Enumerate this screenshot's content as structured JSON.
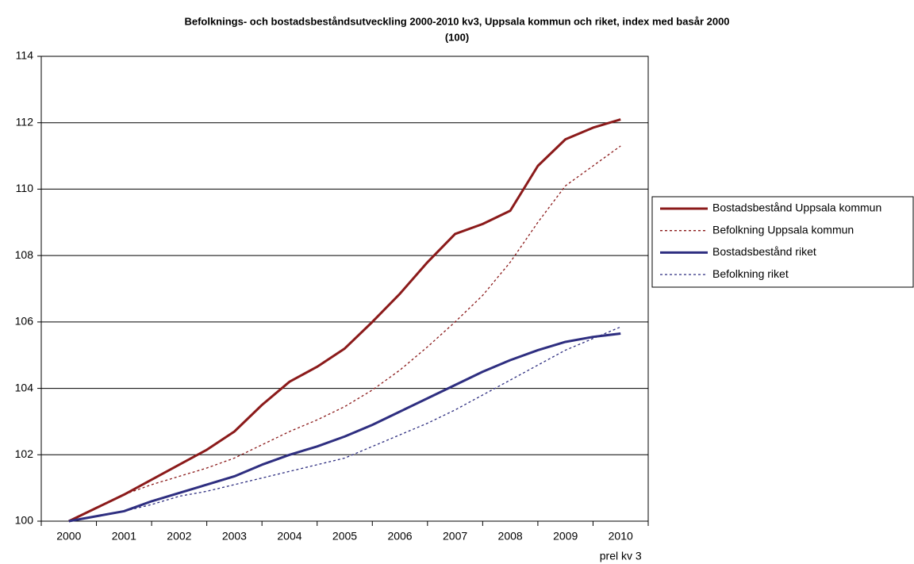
{
  "chart_data": {
    "type": "line",
    "title": [
      "Befolknings- och bostadsbeståndsutveckling 2000-2010 kv3, Uppsala kommun och riket, index med basår 2000",
      "(100)"
    ],
    "x": [
      2000,
      2000.5,
      2001,
      2001.5,
      2002,
      2002.5,
      2003,
      2003.5,
      2004,
      2004.5,
      2005,
      2005.5,
      2006,
      2006.5,
      2007,
      2007.5,
      2008,
      2008.5,
      2009,
      2009.5,
      2010
    ],
    "xlim": [
      1999.5,
      2010.5
    ],
    "xticks": [
      2000,
      2001,
      2002,
      2003,
      2004,
      2005,
      2006,
      2007,
      2008,
      2009,
      2010
    ],
    "x_note": "prel kv 3",
    "ylim": [
      100,
      114
    ],
    "yticks": [
      100,
      102,
      104,
      106,
      108,
      110,
      112,
      114
    ],
    "grid": true,
    "legend": "right",
    "series": [
      {
        "name": "Bostadsbestånd Uppsala kommun",
        "color": "#8b1a1a",
        "style": "solid",
        "values": [
          100,
          100.4,
          100.8,
          101.25,
          101.7,
          102.15,
          102.7,
          103.5,
          104.2,
          104.65,
          105.2,
          106.0,
          106.85,
          107.8,
          108.65,
          108.95,
          109.35,
          110.7,
          111.5,
          111.85,
          112.1
        ]
      },
      {
        "name": "Befolkning Uppsala kommun",
        "color": "#8b1a1a",
        "style": "dotted",
        "values": [
          100,
          100.4,
          100.8,
          101.1,
          101.35,
          101.6,
          101.9,
          102.3,
          102.7,
          103.05,
          103.45,
          103.95,
          104.55,
          105.25,
          106.0,
          106.8,
          107.8,
          109.0,
          110.1,
          110.7,
          111.3
        ]
      },
      {
        "name": "Bostadsbestånd riket",
        "color": "#2e2e80",
        "style": "solid",
        "values": [
          100,
          100.15,
          100.3,
          100.6,
          100.85,
          101.1,
          101.35,
          101.7,
          102.0,
          102.25,
          102.55,
          102.9,
          103.3,
          103.7,
          104.1,
          104.5,
          104.85,
          105.15,
          105.4,
          105.55,
          105.65
        ]
      },
      {
        "name": "Befolkning riket",
        "color": "#2e2e80",
        "style": "dotted",
        "values": [
          100,
          100.15,
          100.3,
          100.5,
          100.75,
          100.9,
          101.1,
          101.3,
          101.5,
          101.7,
          101.9,
          102.25,
          102.6,
          102.95,
          103.35,
          103.8,
          104.25,
          104.7,
          105.15,
          105.5,
          105.85
        ]
      }
    ]
  }
}
